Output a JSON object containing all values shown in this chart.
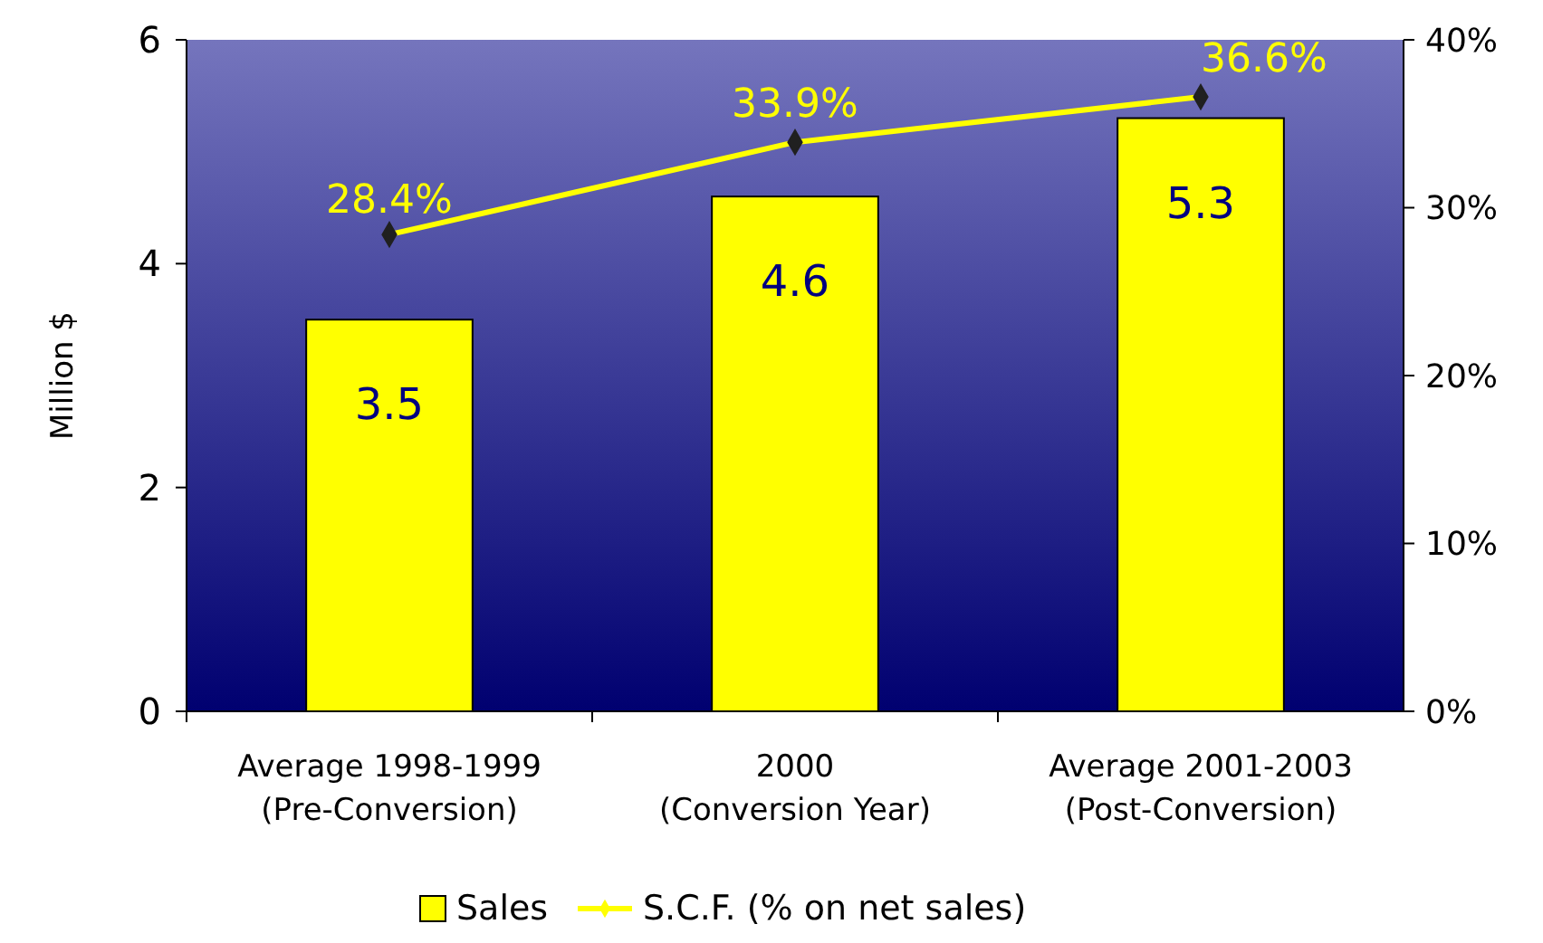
{
  "chart_data": {
    "type": "bar",
    "categories": [
      "Average 1998-1999\n(Pre-Conversion)",
      "2000\n(Conversion Year)",
      "Average 2001-2003\n(Post-Conversion)"
    ],
    "ylabel": "Million $",
    "ylim": [
      0,
      6
    ],
    "yticks": [
      0,
      2,
      4,
      6
    ],
    "y2lim": [
      0,
      40
    ],
    "y2ticks": [
      {
        "value": 0,
        "label": "0%"
      },
      {
        "value": 10,
        "label": "10%"
      },
      {
        "value": 20,
        "label": "20%"
      },
      {
        "value": 30,
        "label": "30%"
      },
      {
        "value": 40,
        "label": "40%"
      }
    ],
    "legend": "bottom",
    "marker": "diamond",
    "series": [
      {
        "name": "Sales",
        "color": "#ffff00",
        "values": [
          3.5,
          4.6,
          5.3
        ],
        "value_labels": [
          "3.5",
          "4.6",
          "5.3"
        ]
      },
      {
        "name": "S.C.F. (% on net sales)",
        "type": "line",
        "axis": "y2",
        "color": "#ffff00",
        "values": [
          28.4,
          33.9,
          36.6
        ],
        "value_labels": [
          "28.4%",
          "33.9%",
          "36.6%"
        ]
      }
    ]
  }
}
